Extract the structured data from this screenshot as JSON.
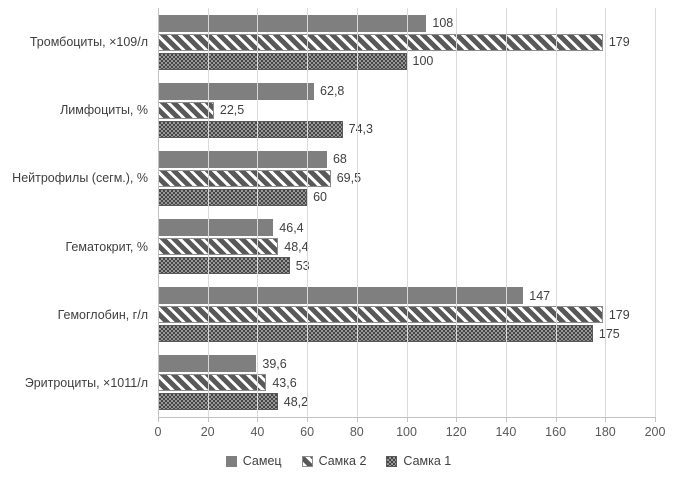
{
  "chart_data": {
    "type": "bar",
    "orientation": "horizontal",
    "title": "",
    "xlabel": "",
    "ylabel": "",
    "categories": [
      "Тромбоциты, ×109/л",
      "Лимфоциты, %",
      "Нейтрофилы (сегм.), %",
      "Гематокрит, %",
      "Гемоглобин, г/л",
      "Эритроциты, ×1011/л"
    ],
    "series": [
      {
        "name": "Самец",
        "pattern": "solid",
        "values": [
          108,
          62.8,
          68,
          46.4,
          147,
          39.6
        ],
        "value_labels": [
          "108",
          "62,8",
          "68",
          "46,4",
          "147",
          "39,6"
        ]
      },
      {
        "name": "Самка 2",
        "pattern": "striped",
        "values": [
          179,
          22.5,
          69.5,
          48.4,
          179,
          43.6
        ],
        "value_labels": [
          "179",
          "22,5",
          "69,5",
          "48,4",
          "179",
          "43,6"
        ]
      },
      {
        "name": "Самка 1",
        "pattern": "dotted",
        "values": [
          100,
          74.3,
          60,
          53,
          175,
          48.2
        ],
        "value_labels": [
          "100",
          "74,3",
          "60",
          "53",
          "175",
          "48,2"
        ]
      }
    ],
    "xlim": [
      0,
      200
    ],
    "x_ticks": [
      0,
      20,
      40,
      60,
      80,
      100,
      120,
      140,
      160,
      180,
      200
    ],
    "grid": true,
    "legend_position": "bottom",
    "data_labels": true,
    "colors": {
      "bar_solid": "#7f7f7f",
      "bar_stripe": "#595959",
      "bar_dot_dark": "#474747",
      "bar_dot_light": "#969696",
      "gridline": "#d9d9d9",
      "axis": "#c3c3c3",
      "text": "#404040"
    }
  }
}
